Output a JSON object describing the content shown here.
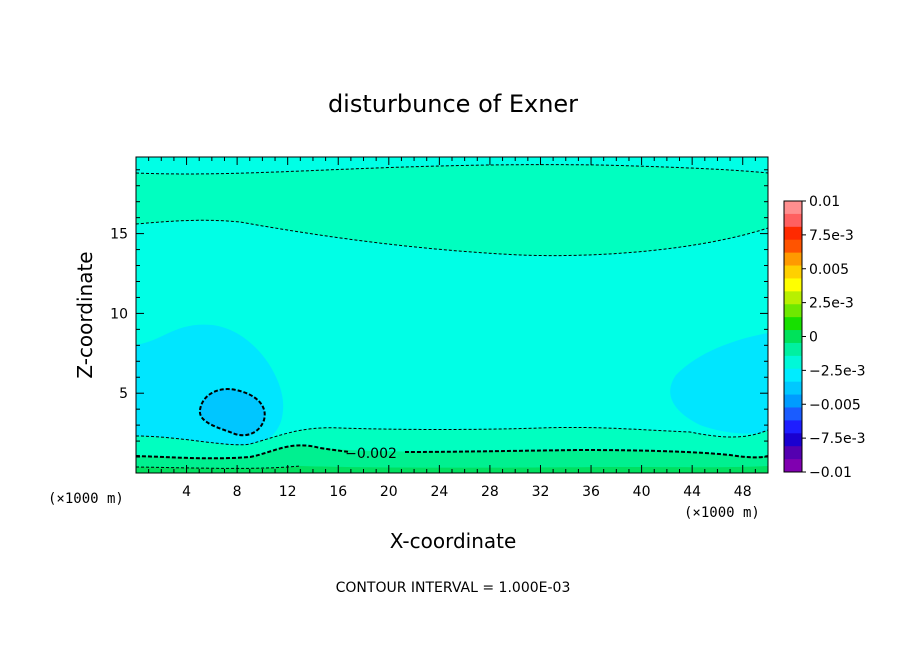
{
  "chart_data": {
    "type": "heatmap",
    "title": "disturbunce of Exner",
    "xlabel": "X-coordinate",
    "ylabel": "Z-coordinate",
    "x_unit_left": "(×1000 m)",
    "x_unit_right": "(×1000 m)",
    "xlim": [
      0,
      50
    ],
    "ylim": [
      0,
      19.8
    ],
    "x_ticks": [
      4,
      8,
      12,
      16,
      20,
      24,
      28,
      32,
      36,
      40,
      44,
      48
    ],
    "x_tick_labels": [
      "4",
      "8",
      "12",
      "16",
      "20",
      "24",
      "28",
      "32",
      "36",
      "40",
      "44",
      "48"
    ],
    "y_ticks": [
      5,
      10,
      15
    ],
    "y_tick_labels": [
      "5",
      "10",
      "15"
    ],
    "colorbar": {
      "labels": [
        "0.01",
        "7.5e-3",
        "0.005",
        "2.5e-3",
        "0",
        "−2.5e-3",
        "−0.005",
        "−7.5e-3",
        "−0.01"
      ],
      "levels_top_to_bottom": [
        0.01,
        0.0075,
        0.005,
        0.0025,
        0,
        -0.0025,
        -0.005,
        -0.0075,
        -0.01
      ],
      "colors_top_to_bottom": [
        "#ff8f8f",
        "#ff6060",
        "#ff2a00",
        "#ff5400",
        "#ff9a00",
        "#ffd000",
        "#ffff00",
        "#b8f000",
        "#6ee800",
        "#17e000",
        "#00e25a",
        "#00f0a0",
        "#00f8d8",
        "#00ecff",
        "#00c8ff",
        "#009cff",
        "#1a5cff",
        "#1e1eff",
        "#1a00d0",
        "#5400b0",
        "#8000b0"
      ]
    },
    "contour_interval_label": "CONTOUR INTERVAL = 1.000E-03",
    "contour_label": "−0.002",
    "regions": [
      {
        "name": "upper band",
        "level": -0.002,
        "z_range": [
          15.8,
          18.8
        ],
        "color": "#00ffc0"
      },
      {
        "name": "background",
        "level": -0.003,
        "color": "#00ffe6"
      },
      {
        "name": "left low lobe",
        "level": -0.004,
        "center": [
          6.5,
          5.5
        ],
        "color": "#00e6ff"
      },
      {
        "name": "left core",
        "level": -0.005,
        "center": [
          7.5,
          4.0
        ],
        "color": "#00c6ff"
      },
      {
        "name": "right low lobe",
        "level": -0.004,
        "center": [
          48,
          5.5
        ],
        "color": "#00e6ff"
      },
      {
        "name": "surface band 1",
        "level": -0.002,
        "z_range": [
          1.5,
          3.0
        ],
        "color": "#00ffc0"
      },
      {
        "name": "surface band 2",
        "level": -0.001,
        "z_range": [
          0.5,
          1.5
        ],
        "color": "#00f090"
      },
      {
        "name": "surface band 3",
        "level": 0.0,
        "z_range": [
          0,
          0.5
        ],
        "color": "#00e060"
      }
    ]
  }
}
